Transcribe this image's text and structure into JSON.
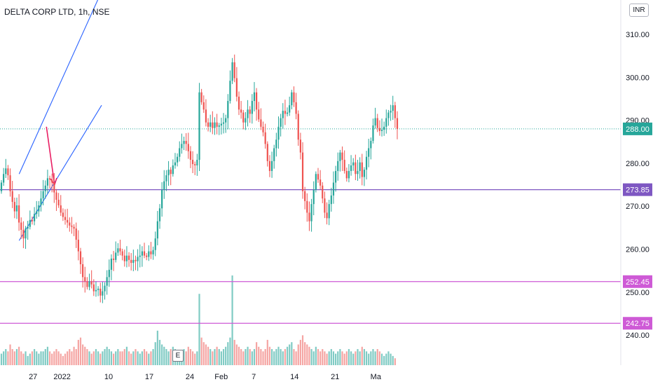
{
  "header": {
    "title": "DELTA CORP LTD, 1h, NSE",
    "currency": "INR"
  },
  "markers": {
    "earnings": "E"
  },
  "chart_data": {
    "type": "candlestick",
    "symbol": "DELTA CORP LTD",
    "interval": "1h",
    "exchange": "NSE",
    "currency": "INR",
    "ylim": [
      233,
      318
    ],
    "y_ticks": [
      240,
      250,
      260,
      270,
      280,
      290,
      300,
      310
    ],
    "y_tick_labels": [
      "240.00",
      "250.00",
      "260.00",
      "270.00",
      "280.00",
      "290.00",
      "300.00",
      "310.00"
    ],
    "x_tick_labels": [
      "27",
      "2022",
      "10",
      "17",
      "24",
      "Feb",
      "7",
      "14",
      "21",
      "Ma"
    ],
    "colors": {
      "up": "#26a69a",
      "down": "#ef5350",
      "vol_up": "#80cbc4",
      "vol_down": "#f5a5a3",
      "channel": "#2962ff",
      "arrow": "#e91e63",
      "purple": "#7e57c2",
      "magenta": "#ce5ad6"
    },
    "closes": [
      275.5,
      277.5,
      278.8,
      277.2,
      273.5,
      271.0,
      268.8,
      270.2,
      266.2,
      264.5,
      262.5,
      264.8,
      265.2,
      266.8,
      266.5,
      268.2,
      268.8,
      270.2,
      271.8,
      273.5,
      274.8,
      276.5,
      276.2,
      275.5,
      273.2,
      271.5,
      270.2,
      268.5,
      267.5,
      266.8,
      266.2,
      265.5,
      265.2,
      264.8,
      262.2,
      259.5,
      256.5,
      253.5,
      252.5,
      251.2,
      252.5,
      251.8,
      250.2,
      250.5,
      250.8,
      249.2,
      250.2,
      251.5,
      253.5,
      255.2,
      257.8,
      257.5,
      259.2,
      260.2,
      259.5,
      258.5,
      257.2,
      258.5,
      257.5,
      256.8,
      257.5,
      257.2,
      258.2,
      258.5,
      259.5,
      258.5,
      258.2,
      259.5,
      258.8,
      259.8,
      262.5,
      266.5,
      269.5,
      273.8,
      275.8,
      277.2,
      278.5,
      277.5,
      279.5,
      280.2,
      281.5,
      283.5,
      284.5,
      285.2,
      284.5,
      282.8,
      280.8,
      279.8,
      279.5,
      280.8,
      296.5,
      294.2,
      292.5,
      289.5,
      288.5,
      289.5,
      288.2,
      289.5,
      288.5,
      288.8,
      289.2,
      289.5,
      290.5,
      294.5,
      299.2,
      303.5,
      299.8,
      295.5,
      292.5,
      291.8,
      289.5,
      290.5,
      292.5,
      291.5,
      294.5,
      296.5,
      292.5,
      290.2,
      288.5,
      287.2,
      284.5,
      280.5,
      278.2,
      280.5,
      283.5,
      285.5,
      288.5,
      290.5,
      292.2,
      291.5,
      291.8,
      293.5,
      296.5,
      294.2,
      291.5,
      285.5,
      282.5,
      273.5,
      271.2,
      268.5,
      266.5,
      270.5,
      273.8,
      277.5,
      276.2,
      274.8,
      271.8,
      268.5,
      267.2,
      270.5,
      272.5,
      275.5,
      278.2,
      280.5,
      282.5,
      280.8,
      278.2,
      276.5,
      278.2,
      279.5,
      280.2,
      277.5,
      278.2,
      280.2,
      276.8,
      278.5,
      281.5,
      283.5,
      285.2,
      288.8,
      290.5,
      288.2,
      287.5,
      287.8,
      288.5,
      290.5,
      291.8,
      292.2,
      293.5,
      290.5,
      288.0
    ],
    "volumes": [
      0.25,
      0.3,
      0.35,
      0.3,
      0.45,
      0.35,
      0.3,
      0.35,
      0.4,
      0.3,
      0.25,
      0.3,
      0.2,
      0.25,
      0.3,
      0.35,
      0.3,
      0.25,
      0.3,
      0.3,
      0.35,
      0.4,
      0.3,
      0.25,
      0.3,
      0.35,
      0.3,
      0.25,
      0.2,
      0.25,
      0.3,
      0.35,
      0.3,
      0.4,
      0.35,
      0.55,
      0.6,
      0.45,
      0.4,
      0.35,
      0.3,
      0.25,
      0.3,
      0.35,
      0.3,
      0.25,
      0.3,
      0.35,
      0.4,
      0.35,
      0.3,
      0.25,
      0.3,
      0.35,
      0.3,
      0.3,
      0.35,
      0.4,
      0.3,
      0.25,
      0.3,
      0.35,
      0.3,
      0.25,
      0.3,
      0.35,
      0.3,
      0.25,
      0.3,
      0.35,
      0.5,
      0.75,
      0.55,
      0.45,
      0.4,
      0.35,
      0.3,
      0.35,
      0.4,
      0.35,
      0.3,
      0.25,
      0.3,
      0.35,
      0.3,
      0.4,
      0.35,
      0.3,
      0.25,
      0.3,
      1.55,
      0.6,
      0.5,
      0.45,
      0.4,
      0.35,
      0.3,
      0.35,
      0.4,
      0.35,
      0.3,
      0.35,
      0.4,
      0.5,
      0.6,
      1.95,
      0.55,
      0.45,
      0.4,
      0.35,
      0.3,
      0.35,
      0.4,
      0.35,
      0.3,
      0.35,
      0.5,
      0.4,
      0.35,
      0.3,
      0.35,
      0.55,
      0.4,
      0.35,
      0.3,
      0.35,
      0.4,
      0.35,
      0.3,
      0.35,
      0.4,
      0.45,
      0.5,
      0.35,
      0.3,
      0.45,
      0.55,
      0.65,
      0.5,
      0.45,
      0.4,
      0.35,
      0.3,
      0.4,
      0.35,
      0.3,
      0.35,
      0.3,
      0.25,
      0.3,
      0.35,
      0.3,
      0.25,
      0.3,
      0.35,
      0.3,
      0.25,
      0.3,
      0.35,
      0.3,
      0.25,
      0.3,
      0.35,
      0.3,
      0.4,
      0.35,
      0.3,
      0.25,
      0.3,
      0.35,
      0.3,
      0.35,
      0.3,
      0.25,
      0.2,
      0.25,
      0.3,
      0.25,
      0.2,
      0.15
    ],
    "price_lines": [
      {
        "price": 288.0,
        "label": "288.00",
        "style": "dotted-last-price"
      },
      {
        "price": 273.85,
        "label": "273.85",
        "style": "horizontal"
      },
      {
        "price": 252.45,
        "label": "252.45",
        "style": "horizontal"
      },
      {
        "price": 242.75,
        "label": "242.75",
        "style": "horizontal"
      }
    ],
    "drawings": {
      "channel_lower": [
        [
          24.6,
          262.0
        ],
        [
          38.8,
          293.5
        ]
      ],
      "channel_upper": [
        [
          24.6,
          277.5
        ],
        [
          38.8,
          320.0
        ]
      ],
      "arrow": [
        [
          29.3,
          288.5
        ],
        [
          30.7,
          275.0
        ]
      ]
    }
  }
}
